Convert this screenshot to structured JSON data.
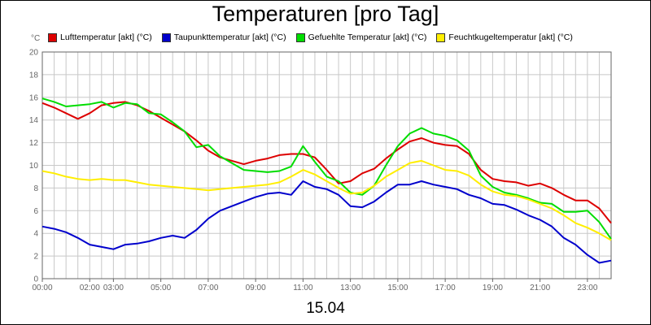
{
  "chart_data": {
    "type": "line",
    "title": "Temperaturen [pro Tag]",
    "xlabel": "15.04",
    "ylabel": "",
    "y_unit": "°C",
    "ylim": [
      0,
      20
    ],
    "yticks": [
      0,
      2,
      4,
      6,
      8,
      10,
      12,
      14,
      16,
      18,
      20
    ],
    "xlim": [
      0,
      24
    ],
    "x_ticks": [
      {
        "x": 0,
        "label": "00:00"
      },
      {
        "x": 2,
        "label": "02:00"
      },
      {
        "x": 3,
        "label": "03:00"
      },
      {
        "x": 5,
        "label": "05:00"
      },
      {
        "x": 7,
        "label": "07:00"
      },
      {
        "x": 9,
        "label": "09:00"
      },
      {
        "x": 11,
        "label": "11:00"
      },
      {
        "x": 13,
        "label": "13:00"
      },
      {
        "x": 15,
        "label": "15:00"
      },
      {
        "x": 17,
        "label": "17:00"
      },
      {
        "x": 19,
        "label": "19:00"
      },
      {
        "x": 21,
        "label": "21:00"
      },
      {
        "x": 23,
        "label": "23:00"
      }
    ],
    "grid": true,
    "legend_position": "top",
    "x": [
      0,
      0.5,
      1,
      1.5,
      2,
      2.5,
      3,
      3.5,
      4,
      4.5,
      5,
      5.5,
      6,
      6.5,
      7,
      7.5,
      8,
      8.5,
      9,
      9.5,
      10,
      10.5,
      11,
      11.5,
      12,
      12.5,
      13,
      13.5,
      14,
      14.5,
      15,
      15.5,
      16,
      16.5,
      17,
      17.5,
      18,
      18.5,
      19,
      19.5,
      20,
      20.5,
      21,
      21.5,
      22,
      22.5,
      23,
      23.5,
      24
    ],
    "series": [
      {
        "name": "Lufttemperatur [akt] (°C)",
        "color": "#dd0000",
        "values": [
          15.5,
          15.1,
          14.6,
          14.1,
          14.6,
          15.3,
          15.5,
          15.6,
          15.3,
          14.8,
          14.2,
          13.6,
          13.0,
          12.2,
          11.3,
          10.7,
          10.4,
          10.1,
          10.4,
          10.6,
          10.9,
          11.0,
          11.0,
          10.7,
          9.6,
          8.4,
          8.6,
          9.3,
          9.7,
          10.6,
          11.4,
          12.1,
          12.4,
          12.0,
          11.8,
          11.7,
          11.0,
          9.6,
          8.8,
          8.6,
          8.5,
          8.2,
          8.4,
          8.0,
          7.4,
          6.9,
          6.9,
          6.2,
          4.9
        ]
      },
      {
        "name": "Taupunkttemperatur [akt] (°C)",
        "color": "#0000cc",
        "values": [
          4.6,
          4.4,
          4.1,
          3.6,
          3.0,
          2.8,
          2.6,
          3.0,
          3.1,
          3.3,
          3.6,
          3.8,
          3.6,
          4.3,
          5.3,
          6.0,
          6.4,
          6.8,
          7.2,
          7.5,
          7.6,
          7.4,
          8.6,
          8.1,
          7.9,
          7.4,
          6.4,
          6.3,
          6.8,
          7.6,
          8.3,
          8.3,
          8.6,
          8.3,
          8.1,
          7.9,
          7.4,
          7.1,
          6.6,
          6.5,
          6.1,
          5.6,
          5.2,
          4.6,
          3.6,
          3.0,
          2.1,
          1.4,
          1.6
        ]
      },
      {
        "name": "Gefuehlte Temperatur [akt] (°C)",
        "color": "#00dd00",
        "values": [
          15.9,
          15.6,
          15.2,
          15.3,
          15.4,
          15.6,
          15.1,
          15.5,
          15.4,
          14.6,
          14.5,
          13.8,
          13.0,
          11.6,
          11.8,
          10.8,
          10.2,
          9.6,
          9.5,
          9.4,
          9.5,
          9.9,
          11.7,
          10.3,
          9.0,
          8.6,
          7.6,
          7.4,
          8.2,
          10.0,
          11.7,
          12.8,
          13.3,
          12.8,
          12.6,
          12.2,
          11.3,
          9.1,
          8.1,
          7.6,
          7.4,
          7.1,
          6.7,
          6.6,
          5.9,
          5.9,
          6.0,
          5.0,
          3.5
        ]
      },
      {
        "name": "Feuchtkugeltemperatur [akt] (°C)",
        "color": "#ffee00",
        "values": [
          9.5,
          9.3,
          9.0,
          8.8,
          8.7,
          8.8,
          8.7,
          8.7,
          8.5,
          8.3,
          8.2,
          8.1,
          8.0,
          7.9,
          7.8,
          7.9,
          8.0,
          8.1,
          8.2,
          8.3,
          8.5,
          9.0,
          9.6,
          9.2,
          8.6,
          8.0,
          7.5,
          7.6,
          8.2,
          9.0,
          9.6,
          10.2,
          10.4,
          10.0,
          9.6,
          9.5,
          9.1,
          8.3,
          7.7,
          7.4,
          7.3,
          7.0,
          6.6,
          6.2,
          5.6,
          4.9,
          4.5,
          4.0,
          3.4
        ]
      }
    ]
  }
}
